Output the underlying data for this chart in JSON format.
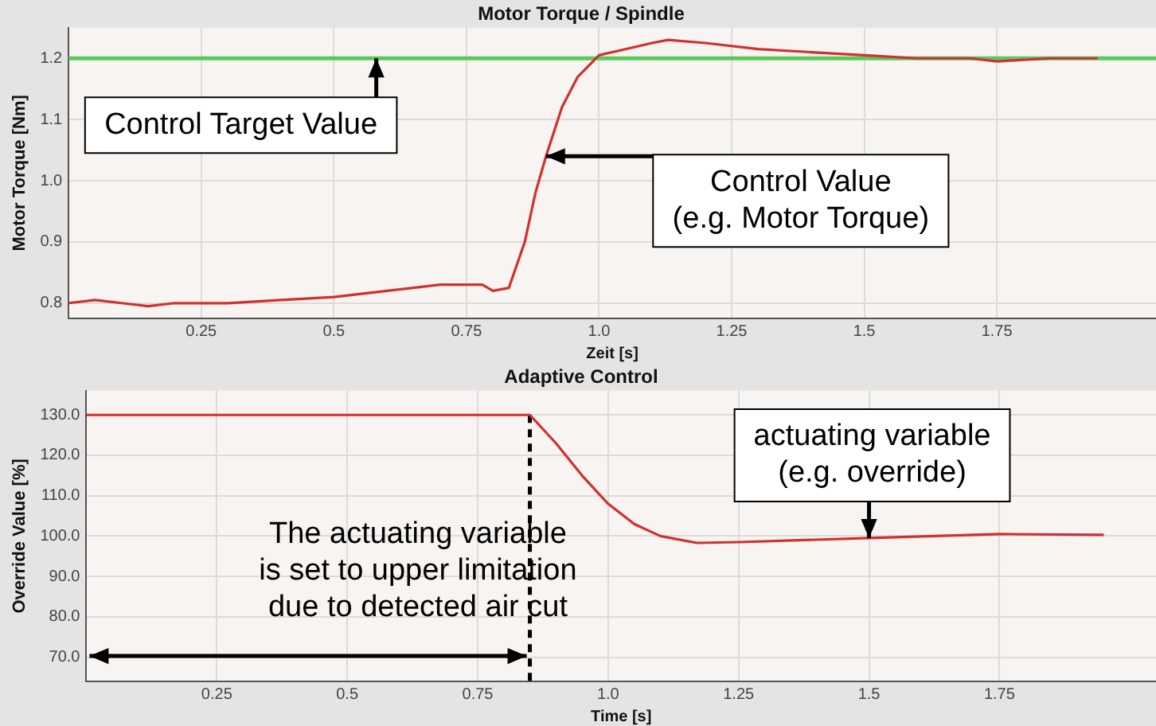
{
  "chart_data": [
    {
      "type": "line",
      "title": "Motor Torque / Spindle",
      "xlabel": "Zeit [s]",
      "ylabel": "Motor Torque [Nm]",
      "x": [
        0,
        0.05,
        0.1,
        0.15,
        0.2,
        0.25,
        0.3,
        0.4,
        0.5,
        0.6,
        0.7,
        0.78,
        0.8,
        0.83,
        0.86,
        0.88,
        0.9,
        0.93,
        0.96,
        1.0,
        1.05,
        1.1,
        1.13,
        1.2,
        1.3,
        1.4,
        1.5,
        1.6,
        1.7,
        1.75,
        1.85,
        1.94
      ],
      "series": [
        {
          "color": "#d03030",
          "values": [
            0.8,
            0.805,
            0.8,
            0.795,
            0.8,
            0.8,
            0.8,
            0.805,
            0.81,
            0.82,
            0.83,
            0.83,
            0.82,
            0.825,
            0.9,
            0.98,
            1.04,
            1.12,
            1.17,
            1.205,
            1.215,
            1.225,
            1.23,
            1.225,
            1.215,
            1.21,
            1.205,
            1.2,
            1.2,
            1.195,
            1.2,
            1.2
          ]
        }
      ],
      "xlim": [
        0,
        2.05
      ],
      "ylim": [
        0.775,
        1.25
      ],
      "xticks": [
        0.25,
        0.5,
        0.75,
        {
          "value": 1,
          "label": "1.0"
        },
        1.25,
        1.5,
        1.75
      ],
      "yticks": [
        0.8,
        0.9,
        {
          "value": 1,
          "label": "1.0"
        },
        1.1,
        1.2
      ],
      "grid": true,
      "ref_lines": [
        {
          "axis": "y",
          "value": 1.2,
          "color": "#5cc85c"
        }
      ],
      "annotations": [
        {
          "text": "Control Target Value",
          "x": 0.58,
          "y": 1.2
        },
        {
          "text": "Control Value\n(e.g. Motor Torque)",
          "x": 0.9,
          "y": 1.04
        }
      ]
    },
    {
      "type": "line",
      "title": "Adaptive Control",
      "xlabel": "Time [s]",
      "ylabel": "Override Value [%]",
      "x": [
        0,
        0.85,
        0.9,
        0.95,
        1.0,
        1.05,
        1.1,
        1.17,
        1.25,
        1.5,
        1.75,
        1.95
      ],
      "series": [
        {
          "color": "#d03030",
          "values": [
            130,
            130,
            123,
            115,
            108,
            103,
            100,
            98.3,
            98.5,
            99.5,
            100.5,
            100.3
          ]
        }
      ],
      "xlim": [
        0,
        2.05
      ],
      "ylim": [
        64,
        136
      ],
      "xticks": [
        0.25,
        0.5,
        0.75,
        {
          "value": 1,
          "label": "1.0"
        },
        1.25,
        1.5,
        1.75
      ],
      "yticks": [
        {
          "value": 70,
          "label": "70.0"
        },
        {
          "value": 80,
          "label": "80.0"
        },
        {
          "value": 90,
          "label": "90.0"
        },
        {
          "value": 100,
          "label": "100.0"
        },
        {
          "value": 110,
          "label": "110.0"
        },
        {
          "value": 120,
          "label": "120.0"
        },
        {
          "value": 130,
          "label": "130.0"
        }
      ],
      "grid": true,
      "ref_lines": [
        {
          "axis": "x",
          "value": 0.85,
          "color": "#000000",
          "line_style": "dashed"
        }
      ],
      "annotations": [
        {
          "text": "actuating variable\n(e.g. override)",
          "x": 1.5,
          "y": 99.5
        },
        "The actuating variable\nis set to upper limitation\ndue to detected air cut"
      ]
    }
  ]
}
